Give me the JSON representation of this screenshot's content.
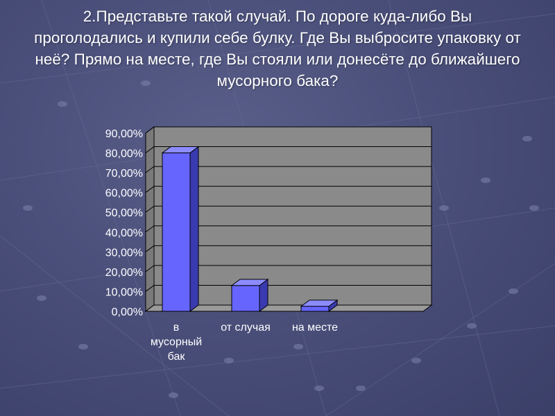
{
  "slide": {
    "title": "2.Представьте такой случай. По дороге куда-либо Вы проголодались и купили себе булку. Где  Вы выбросите упаковку от неё? Прямо на месте, где Вы стояли или донесёте до ближайшего мусорного бака?"
  },
  "colors": {
    "background": "#4a4f7a",
    "bar_front": "#6666ff",
    "bar_top": "#8c8cff",
    "bar_side": "#3a3ab0",
    "plot_wall": "#8a8a8a",
    "floor": "#9a9a9a"
  },
  "chart_data": {
    "type": "bar",
    "style": "3d-column",
    "categories": [
      "в мусорный бак",
      "от случая",
      "на месте"
    ],
    "category_lines": [
      [
        "в",
        "мусорный",
        "бак"
      ],
      [
        "от случая"
      ],
      [
        "на месте"
      ]
    ],
    "values": [
      80,
      13,
      2.5
    ],
    "ylim": [
      0,
      90
    ],
    "yticks": [
      "0,00%",
      "10,00%",
      "20,00%",
      "30,00%",
      "40,00%",
      "50,00%",
      "60,00%",
      "70,00%",
      "80,00%",
      "90,00%"
    ],
    "ytick_values": [
      0,
      10,
      20,
      30,
      40,
      50,
      60,
      70,
      80,
      90
    ],
    "grid": true,
    "legend": "none",
    "title": "",
    "xlabel": "",
    "ylabel": ""
  }
}
